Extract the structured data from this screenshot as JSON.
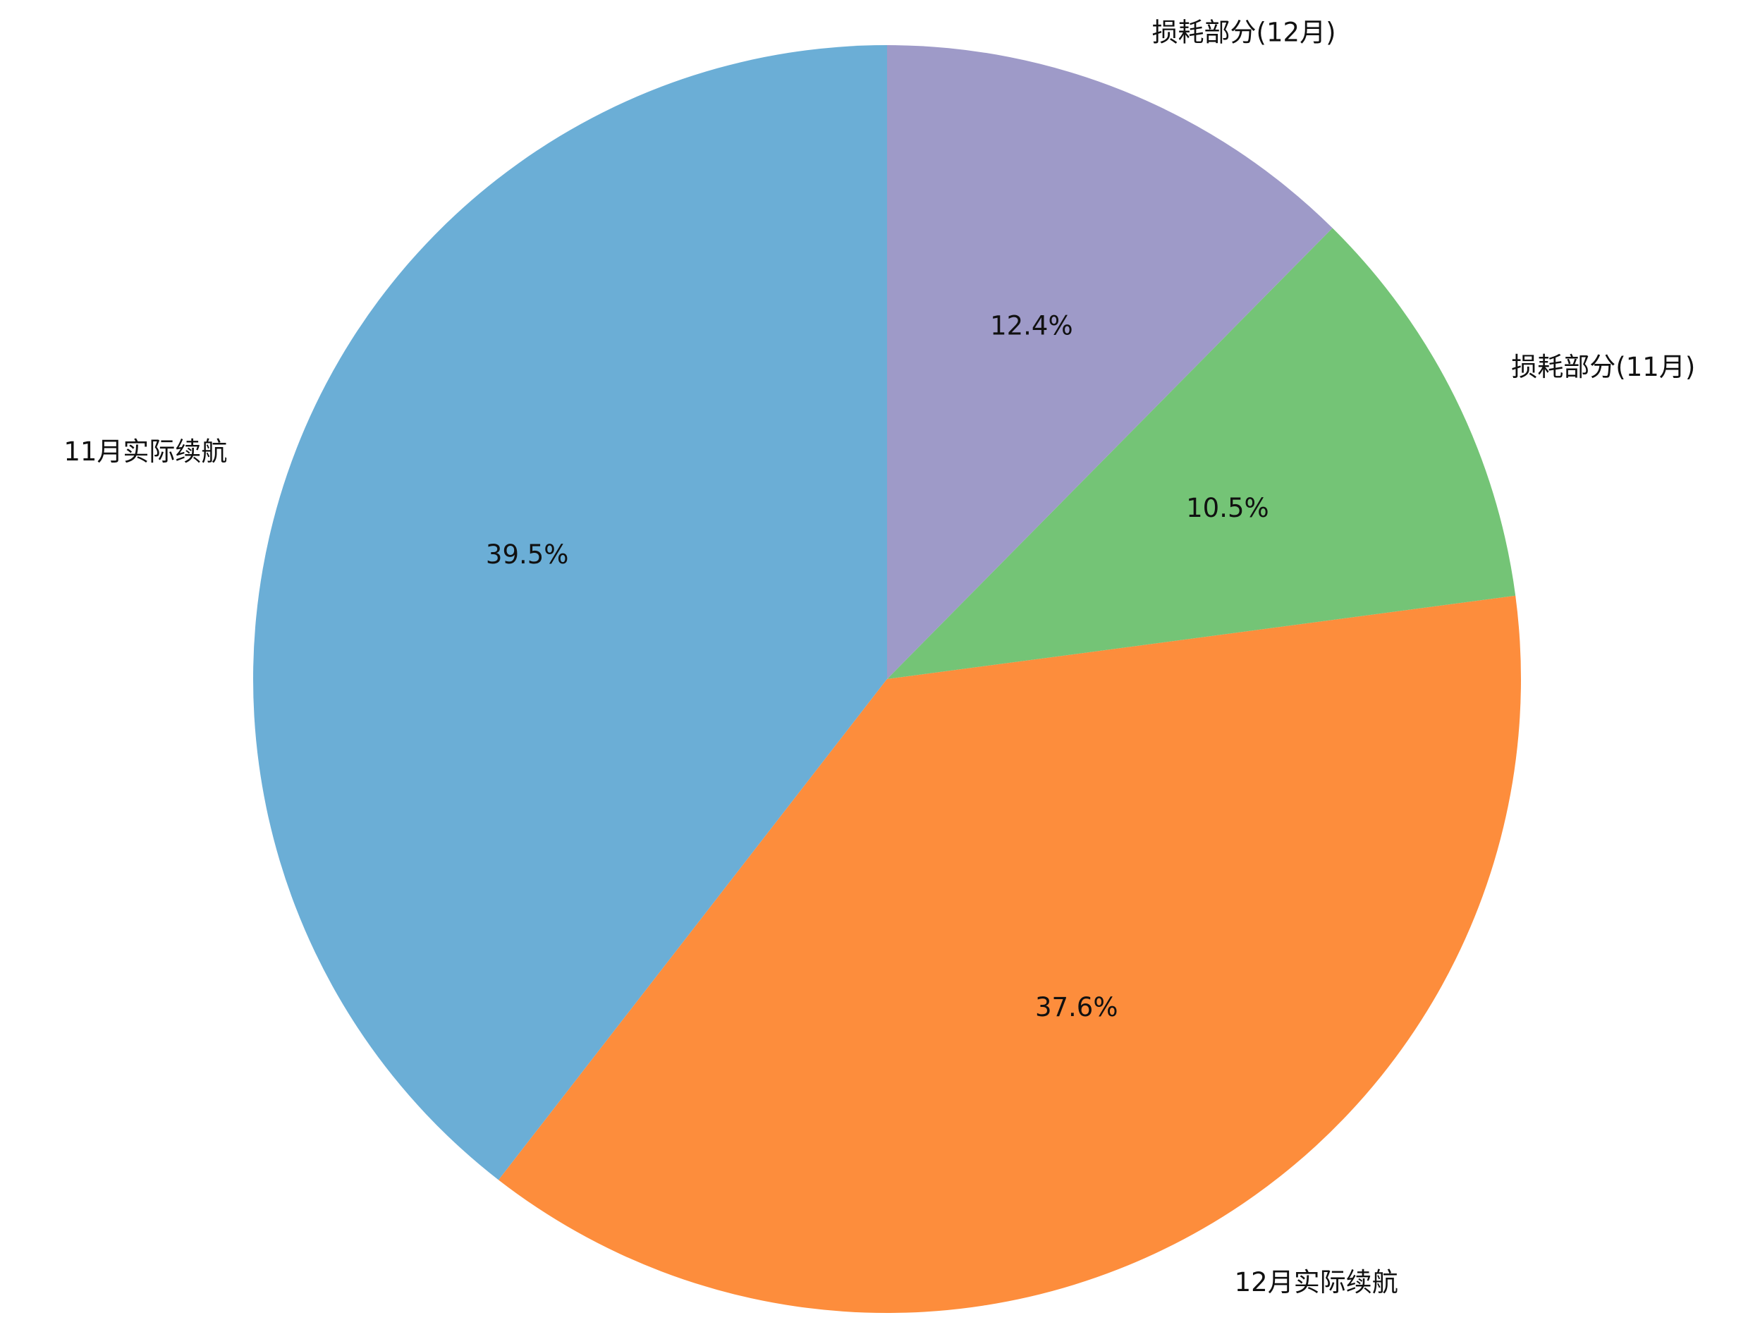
{
  "chart_data": {
    "type": "pie",
    "categories": [
      "11月实际续航",
      "12月实际续航",
      "损耗部分(11月)",
      "损耗部分(12月)"
    ],
    "values": [
      39.5,
      37.6,
      10.5,
      12.4
    ],
    "value_labels": [
      "39.5%",
      "37.6%",
      "10.5%",
      "12.4%"
    ],
    "colors": [
      "#6baed6",
      "#fd8d3c",
      "#74c476",
      "#9e9ac8"
    ]
  }
}
